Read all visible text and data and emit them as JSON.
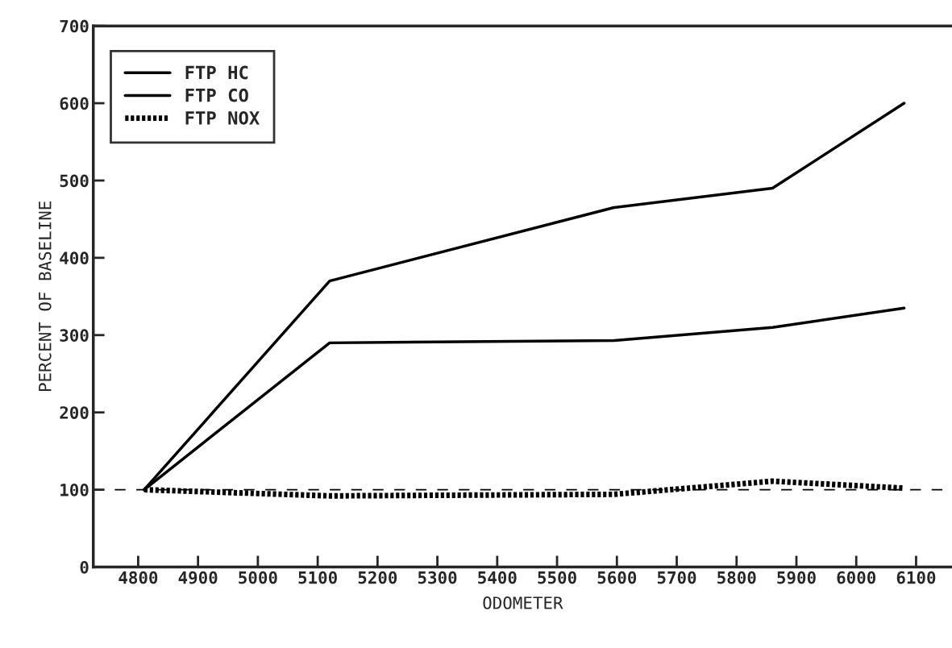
{
  "chart_data": {
    "type": "line",
    "xlabel": "ODOMETER",
    "ylabel": "PERCENT OF BASELINE",
    "x": [
      4810,
      5120,
      5595,
      5860,
      6080
    ],
    "series": [
      {
        "name": "FTP HC",
        "color": "#000000",
        "values": [
          100,
          370,
          465,
          490,
          600
        ],
        "line_style": "solid"
      },
      {
        "name": "FTP CO",
        "color": "#000000",
        "values": [
          100,
          290,
          293,
          310,
          335
        ],
        "line_style": "solid"
      },
      {
        "name": "FTP NOX",
        "color": "#000000",
        "values": [
          100,
          92,
          94,
          111,
          102
        ],
        "line_style": "dotted"
      }
    ],
    "xlim": [
      4725,
      6160
    ],
    "xticks": [
      4800,
      4900,
      5000,
      5100,
      5200,
      5300,
      5400,
      5500,
      5600,
      5700,
      5800,
      5900,
      6000,
      6100
    ],
    "ylim": [
      0,
      700
    ],
    "yticks": [
      0,
      100,
      200,
      300,
      400,
      500,
      600,
      700
    ],
    "ref_lines": [
      {
        "axis": "y",
        "value": 100,
        "color": "#000000",
        "line_style": "dashed"
      }
    ],
    "legend": "top left",
    "grid": false,
    "marker": "none"
  }
}
